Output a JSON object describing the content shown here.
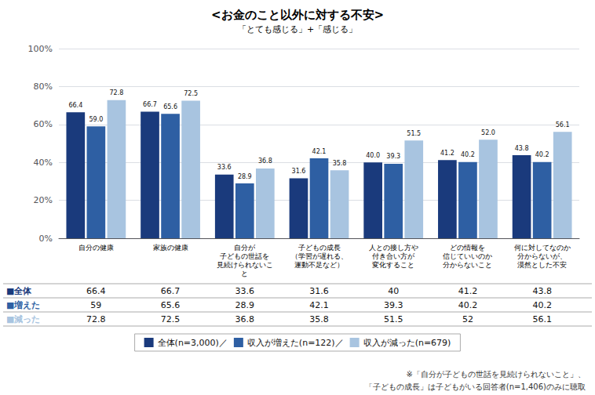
{
  "chart_data": {
    "type": "bar",
    "title": "<お金のこと以外に対する不安>",
    "subtitle": "「とても感じる」+「感じる」",
    "categories": [
      "自分の健康",
      "家族の健康",
      "自分が\n子どもの世話を\n見続けられないこ\nと",
      "子どもの成長\n（学習が遅れる、\n運動不足など）",
      "人との接し方や\n付き合い方が\n変化すること",
      "どの情報を\n信じていいのか\n分からないこと",
      "何に対してなのか\n分からないが、\n漠然とした不安"
    ],
    "series": [
      {
        "name": "全体(n=3,000)／",
        "color": "#1a3a7c",
        "values": [
          66.4,
          66.7,
          33.6,
          31.6,
          40,
          41.2,
          43.8
        ],
        "value_labels": [
          "66.4",
          "66.7",
          "33.6",
          "31.6",
          "40.0",
          "41.2",
          "43.8"
        ]
      },
      {
        "name": "収入が増えた(n=122)／",
        "color": "#2e5fa3",
        "values": [
          59,
          65.6,
          28.9,
          42.1,
          39.3,
          40.2,
          40.2
        ],
        "value_labels": [
          "59.0",
          "65.6",
          "28.9",
          "42.1",
          "39.3",
          "40.2",
          "40.2"
        ]
      },
      {
        "name": "収入が減った(n=679)",
        "color": "#a8c4e0",
        "values": [
          72.8,
          72.5,
          36.8,
          35.8,
          51.5,
          52,
          56.1
        ],
        "value_labels": [
          "72.8",
          "72.5",
          "36.8",
          "35.8",
          "51.5",
          "52.0",
          "56.1"
        ]
      }
    ],
    "ylim": [
      0,
      100
    ],
    "yticks": [
      {
        "value": 0,
        "label": "0%"
      },
      {
        "value": 20,
        "label": "20%"
      },
      {
        "value": 40,
        "label": "40%"
      },
      {
        "value": 60,
        "label": "60%"
      },
      {
        "value": 80,
        "label": "80%"
      },
      {
        "value": 100,
        "label": "100%"
      }
    ],
    "grid": true,
    "data_labels": true,
    "legend": "bottom",
    "table_row_labels": [
      "■全体",
      "■増えた",
      "■減った"
    ],
    "footnotes": [
      "※「自分が子どもの世話を見続けられないこと」、",
      "「子どもの成長」は子どもがいる回答者(n=1,406)のみに聴取"
    ]
  }
}
